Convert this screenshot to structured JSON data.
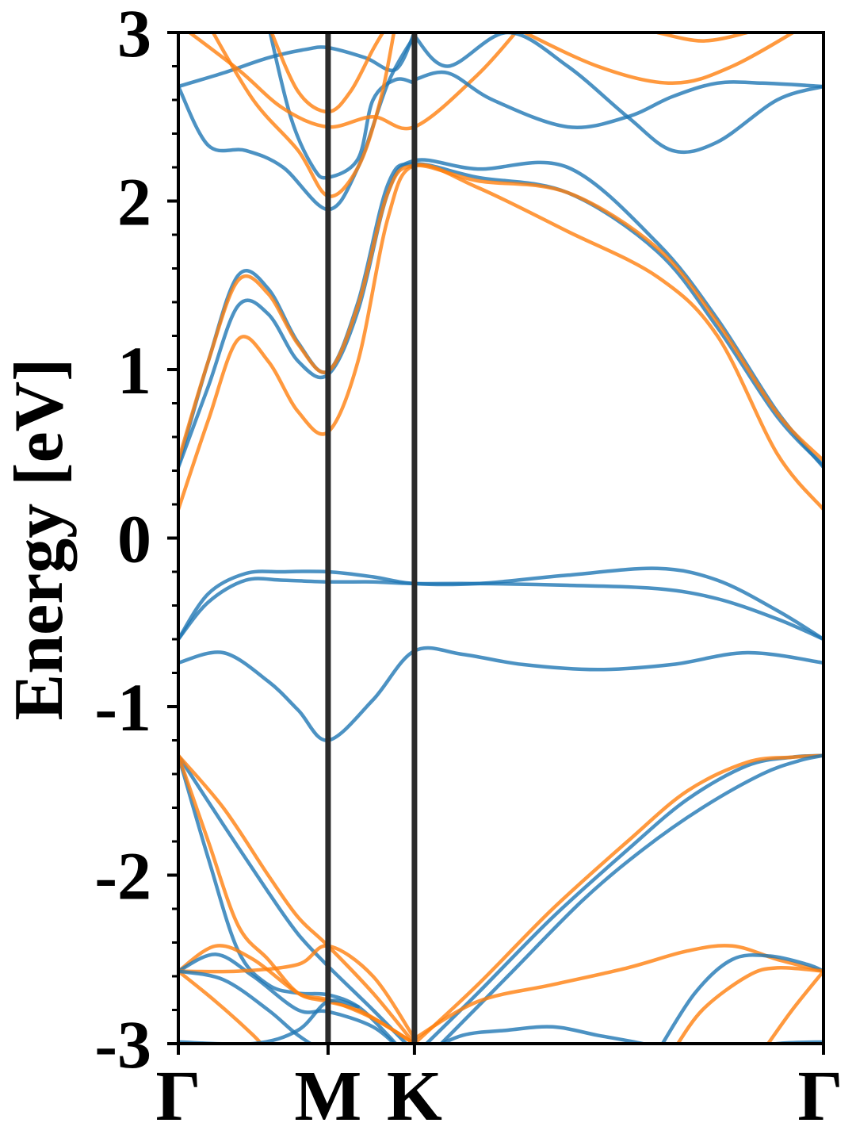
{
  "chart_data": {
    "type": "line",
    "title": "",
    "ylabel": "Energy [eV]",
    "xlabel": "",
    "ylim": [
      -3,
      3
    ],
    "yticks": [
      "3",
      "2",
      "1",
      "0",
      "-1",
      "-2",
      "-3"
    ],
    "ytick_values": [
      3,
      2,
      1,
      0,
      -1,
      -2,
      -3
    ],
    "k_path": {
      "labels": [
        "Γ",
        "M",
        "K",
        "Γ"
      ],
      "positions": [
        0,
        1,
        1.577,
        4.309
      ]
    },
    "grid": false,
    "colors": {
      "blue": "#1f77b4",
      "orange": "#ff7f0e",
      "divider": "#2b2b2b"
    },
    "series": [
      {
        "color": "blue",
        "x": [
          0,
          0.3,
          0.6,
          0.8,
          1,
          1.3,
          1.577,
          1.9,
          2.3,
          2.8,
          3.3,
          3.8,
          4.309
        ],
        "values": [
          -0.74,
          -0.68,
          -0.85,
          -1.02,
          -1.2,
          -0.96,
          -0.67,
          -0.69,
          -0.75,
          -0.78,
          -0.75,
          -0.68,
          -0.74
        ]
      },
      {
        "color": "blue",
        "x": [
          0,
          0.2,
          0.45,
          0.7,
          1,
          1.3,
          1.577,
          2.0,
          2.6,
          3.2,
          3.6,
          4.0,
          4.309
        ],
        "values": [
          -0.6,
          -0.33,
          -0.21,
          -0.2,
          -0.2,
          -0.23,
          -0.27,
          -0.27,
          -0.22,
          -0.18,
          -0.25,
          -0.43,
          -0.6
        ]
      },
      {
        "color": "blue",
        "x": [
          0,
          0.2,
          0.45,
          0.7,
          1,
          1.3,
          1.577,
          2.0,
          2.6,
          3.2,
          3.6,
          4.0,
          4.309
        ],
        "values": [
          -0.6,
          -0.38,
          -0.25,
          -0.25,
          -0.26,
          -0.26,
          -0.27,
          -0.27,
          -0.28,
          -0.3,
          -0.36,
          -0.48,
          -0.6
        ]
      },
      {
        "color": "blue",
        "x": [
          0,
          0.2,
          0.4,
          0.6,
          0.8,
          1,
          1.2,
          1.4,
          1.577,
          2.0,
          2.6,
          3.2,
          3.6,
          4.0,
          4.309
        ],
        "values": [
          0.42,
          0.9,
          1.38,
          1.33,
          1.05,
          0.97,
          1.35,
          2.05,
          2.24,
          2.19,
          2.2,
          1.75,
          1.3,
          0.75,
          0.42
        ]
      },
      {
        "color": "blue",
        "x": [
          0,
          0.2,
          0.4,
          0.6,
          0.8,
          1,
          1.2,
          1.4,
          1.577,
          2.0,
          2.6,
          3.2,
          3.6,
          4.0,
          4.309
        ],
        "values": [
          0.43,
          1.05,
          1.56,
          1.48,
          1.16,
          0.99,
          1.4,
          2.1,
          2.22,
          2.14,
          2.05,
          1.7,
          1.25,
          0.72,
          0.43
        ]
      },
      {
        "color": "orange",
        "x": [
          0,
          0.2,
          0.4,
          0.6,
          0.8,
          1,
          1.2,
          1.4,
          1.577,
          2.0,
          2.6,
          3.2,
          3.6,
          4.0,
          4.309
        ],
        "values": [
          0.17,
          0.7,
          1.18,
          1.05,
          0.75,
          0.63,
          1.05,
          1.9,
          2.21,
          2.08,
          1.82,
          1.55,
          1.2,
          0.5,
          0.17
        ]
      },
      {
        "color": "orange",
        "x": [
          0,
          0.2,
          0.4,
          0.6,
          0.8,
          1,
          1.2,
          1.4,
          1.577,
          2.0,
          2.6,
          3.2,
          3.6,
          4.0,
          4.309
        ],
        "values": [
          0.46,
          1.05,
          1.53,
          1.45,
          1.15,
          0.99,
          1.38,
          2.05,
          2.21,
          2.12,
          2.05,
          1.72,
          1.28,
          0.74,
          0.46
        ]
      },
      {
        "color": "blue",
        "x": [
          0,
          0.2,
          0.45,
          0.7,
          1,
          1.2,
          1.4,
          1.577
        ],
        "values": [
          2.68,
          2.33,
          2.3,
          2.2,
          1.95,
          2.2,
          2.7,
          2.98
        ]
      },
      {
        "color": "blue",
        "x": [
          0,
          0.3,
          0.6,
          0.85,
          1,
          1.25,
          1.45,
          1.577
        ],
        "values": [
          2.68,
          2.76,
          2.85,
          2.9,
          2.91,
          2.85,
          2.78,
          3.0
        ]
      },
      {
        "color": "blue",
        "x": [
          0.6,
          0.75,
          0.9,
          1,
          1.2,
          1.3,
          1.45,
          1.577
        ],
        "values": [
          3.05,
          2.5,
          2.2,
          2.14,
          2.25,
          2.6,
          2.72,
          2.7
        ]
      },
      {
        "color": "orange",
        "x": [
          0.2,
          0.5,
          0.8,
          1,
          1.2,
          1.35,
          1.45
        ],
        "values": [
          3.05,
          2.6,
          2.3,
          2.03,
          2.2,
          2.6,
          3.05
        ]
      },
      {
        "color": "orange",
        "x": [
          0.6,
          0.8,
          1,
          1.15,
          1.3,
          1.4
        ],
        "values": [
          3.05,
          2.65,
          2.53,
          2.65,
          2.9,
          3.05
        ]
      },
      {
        "color": "orange",
        "x": [
          0,
          0.4,
          0.7,
          1,
          1.3,
          1.577,
          2.0,
          2.3
        ],
        "values": [
          3.05,
          2.78,
          2.55,
          2.44,
          2.5,
          2.44,
          2.75,
          3.05
        ]
      },
      {
        "color": "blue",
        "x": [
          1.577,
          1.8,
          2.1,
          2.6,
          3.0,
          3.3,
          3.6,
          3.9,
          4.309
        ],
        "values": [
          2.72,
          2.76,
          2.6,
          2.44,
          2.5,
          2.62,
          2.7,
          2.7,
          2.68
        ]
      },
      {
        "color": "blue",
        "x": [
          1.577,
          1.8,
          2.2,
          2.6,
          3.0,
          3.3,
          3.6,
          4.0,
          4.309
        ],
        "values": [
          2.98,
          2.8,
          3.0,
          2.8,
          2.5,
          2.3,
          2.35,
          2.6,
          2.68
        ]
      },
      {
        "color": "orange",
        "x": [
          2.2,
          2.8,
          3.3,
          3.7,
          4.2
        ],
        "values": [
          3.05,
          2.8,
          2.7,
          2.8,
          3.05
        ]
      },
      {
        "color": "orange",
        "x": [
          3.2,
          3.5,
          3.8,
          3.95
        ],
        "values": [
          3.0,
          2.95,
          3.0,
          3.05
        ]
      },
      {
        "color": "blue",
        "x": [
          0,
          0.3,
          0.6,
          0.8,
          1,
          1.3,
          1.577
        ],
        "values": [
          -1.29,
          -1.7,
          -2.1,
          -2.35,
          -2.54,
          -2.8,
          -3.05
        ]
      },
      {
        "color": "blue",
        "x": [
          0,
          0.2,
          0.4,
          0.6,
          0.8,
          1,
          1.2,
          1.4,
          1.5
        ],
        "values": [
          -1.29,
          -1.9,
          -2.45,
          -2.65,
          -2.7,
          -2.71,
          -2.78,
          -2.95,
          -3.05
        ]
      },
      {
        "color": "orange",
        "x": [
          0,
          0.3,
          0.6,
          0.8,
          1,
          1.3,
          1.577
        ],
        "values": [
          -1.29,
          -1.6,
          -2.0,
          -2.25,
          -2.42,
          -2.7,
          -3.0
        ]
      },
      {
        "color": "orange",
        "x": [
          0,
          0.2,
          0.4,
          0.6,
          0.8,
          1,
          1.2,
          1.4,
          1.577
        ],
        "values": [
          -1.29,
          -1.8,
          -2.3,
          -2.5,
          -2.7,
          -2.75,
          -2.8,
          -2.9,
          -3.0
        ]
      },
      {
        "color": "orange",
        "x": [
          0,
          0.25,
          0.5,
          0.8,
          1,
          1.3,
          1.577
        ],
        "values": [
          -2.57,
          -2.42,
          -2.5,
          -2.7,
          -2.74,
          -2.85,
          -3.0
        ]
      },
      {
        "color": "blue",
        "x": [
          0,
          0.25,
          0.5,
          0.8,
          1,
          1.3,
          1.5
        ],
        "values": [
          -2.57,
          -2.47,
          -2.6,
          -2.8,
          -2.81,
          -2.9,
          -3.05
        ]
      },
      {
        "color": "orange",
        "x": [
          0,
          0.4,
          0.8,
          1,
          1.3,
          1.577
        ],
        "values": [
          -2.57,
          -2.57,
          -2.53,
          -2.42,
          -2.6,
          -2.97
        ]
      },
      {
        "color": "orange",
        "x": [
          0,
          0.25,
          0.5,
          0.6
        ],
        "values": [
          -2.57,
          -2.75,
          -2.95,
          -3.05
        ]
      },
      {
        "color": "blue",
        "x": [
          0,
          0.3,
          0.6,
          0.8,
          1,
          1.2
        ],
        "values": [
          -2.57,
          -2.62,
          -2.8,
          -2.95,
          -3.05,
          -3.05
        ]
      },
      {
        "color": "blue",
        "x": [
          0,
          0.5,
          0.8,
          1,
          1.2
        ],
        "values": [
          -2.99,
          -3.0,
          -2.92,
          -2.75,
          -2.78
        ]
      },
      {
        "color": "blue",
        "x": [
          1.65,
          1.9,
          2.2,
          2.5,
          2.8,
          3.1,
          3.3
        ],
        "values": [
          -3.05,
          -2.95,
          -2.92,
          -2.9,
          -2.95,
          -3.0,
          -3.05
        ]
      },
      {
        "color": "blue",
        "x": [
          1.6,
          2.0,
          2.5,
          3.0,
          3.4,
          3.8,
          4.1,
          4.309
        ],
        "values": [
          -3.05,
          -2.7,
          -2.25,
          -1.85,
          -1.55,
          -1.35,
          -1.3,
          -1.29
        ]
      },
      {
        "color": "orange",
        "x": [
          1.577,
          2.0,
          2.5,
          3.0,
          3.4,
          3.8,
          4.1,
          4.309
        ],
        "values": [
          -3.0,
          -2.65,
          -2.2,
          -1.8,
          -1.5,
          -1.33,
          -1.3,
          -1.29
        ]
      },
      {
        "color": "blue",
        "x": [
          1.7,
          2.2,
          2.7,
          3.1,
          3.5,
          3.9,
          4.15,
          4.309
        ],
        "values": [
          -3.05,
          -2.6,
          -2.15,
          -1.85,
          -1.6,
          -1.4,
          -1.32,
          -1.29
        ]
      },
      {
        "color": "orange",
        "x": [
          1.577,
          2.0,
          2.5,
          3.0,
          3.4,
          3.7,
          4.0,
          4.309
        ],
        "values": [
          -2.97,
          -2.75,
          -2.65,
          -2.55,
          -2.45,
          -2.42,
          -2.5,
          -2.57
        ]
      },
      {
        "color": "blue",
        "x": [
          3.2,
          3.45,
          3.7,
          3.95,
          4.2,
          4.309
        ],
        "values": [
          -3.05,
          -2.7,
          -2.5,
          -2.48,
          -2.53,
          -2.57
        ]
      },
      {
        "color": "orange",
        "x": [
          3.3,
          3.5,
          3.8,
          4.0,
          4.309
        ],
        "values": [
          -3.05,
          -2.8,
          -2.6,
          -2.55,
          -2.57
        ]
      },
      {
        "color": "orange",
        "x": [
          3.9,
          4.1,
          4.309
        ],
        "values": [
          -3.05,
          -2.8,
          -2.57
        ]
      },
      {
        "color": "blue",
        "x": [
          3.7,
          4.0,
          4.309
        ],
        "values": [
          -3.05,
          -3.0,
          -2.99
        ]
      }
    ]
  }
}
